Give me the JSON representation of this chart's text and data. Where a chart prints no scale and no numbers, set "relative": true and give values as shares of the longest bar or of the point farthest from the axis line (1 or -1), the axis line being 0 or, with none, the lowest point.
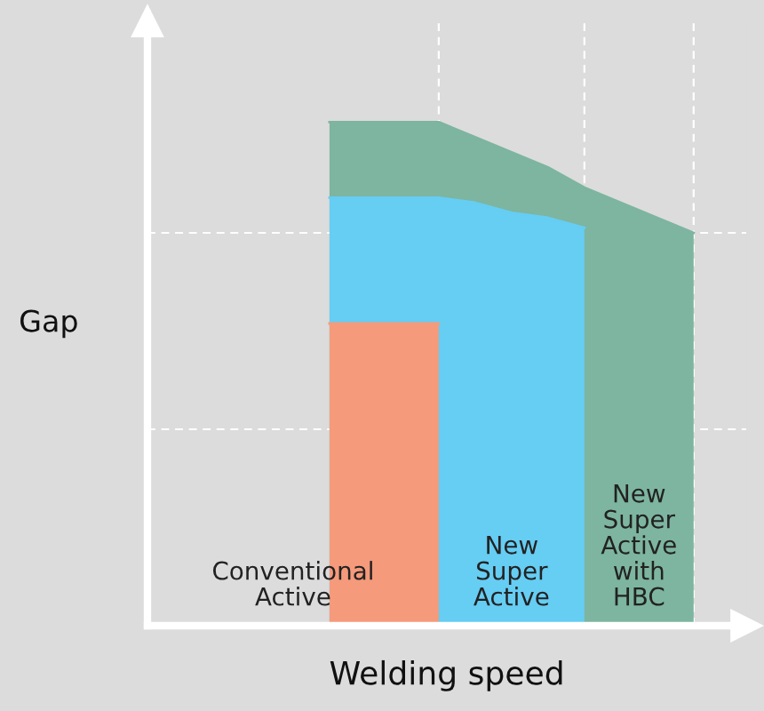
{
  "chart_data": {
    "type": "area",
    "relative": true,
    "xlabel": "Welding speed",
    "ylabel": "Gap",
    "categories": [
      null,
      null,
      null,
      null,
      null,
      null,
      null,
      null,
      null,
      null,
      null,
      null,
      null,
      null,
      null,
      null,
      null
    ],
    "tick_labels": false,
    "grid": true,
    "series": [
      {
        "name": "Conventional\nActive",
        "color": "#f59a7b",
        "values": [
          null,
          null,
          null,
          null,
          null,
          0.6,
          0.6,
          0.6,
          0.6,
          null,
          null,
          null,
          null,
          null,
          null,
          null,
          null
        ]
      },
      {
        "name": "New\nSuper\nActive",
        "color": "#66cdf3",
        "values": [
          null,
          null,
          null,
          null,
          null,
          0.85,
          0.85,
          0.85,
          0.85,
          0.84,
          0.82,
          0.81,
          0.79,
          null,
          null,
          null,
          null
        ]
      },
      {
        "name": "New\nSuper\nActive\nwith\nHBC",
        "color": "#7db5a0",
        "values": [
          null,
          null,
          null,
          null,
          null,
          1,
          1,
          1,
          1,
          0.97,
          0.94,
          0.91,
          0.87,
          0.84,
          0.81,
          0.78,
          null
        ]
      }
    ],
    "ref_lines": [
      {
        "axis": "y",
        "value": 0.78,
        "color": "#ffffff",
        "line_style": "dashed"
      },
      {
        "axis": "y",
        "value": 0.39,
        "color": "#ffffff",
        "line_style": "dashed"
      }
    ]
  }
}
